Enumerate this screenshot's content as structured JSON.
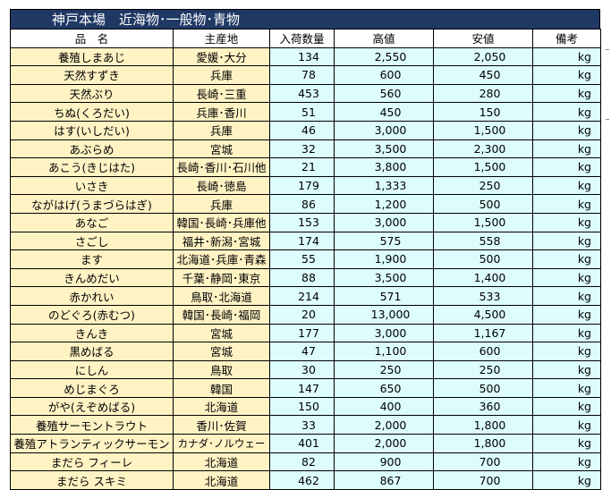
{
  "title": "神戸本場　近海物･一般物･青物",
  "headers": [
    "品　名",
    "主産地",
    "入荷数量",
    "高値",
    "安値",
    "備考"
  ],
  "rows": [
    {
      "name": "養殖しまあじ",
      "origin": "愛媛･大分",
      "qty": "134",
      "high": "2,550",
      "low": "2,050",
      "note": "kg"
    },
    {
      "name": "天然すずき",
      "origin": "兵庫",
      "qty": "78",
      "high": "600",
      "low": "450",
      "note": "kg"
    },
    {
      "name": "天然ぶり",
      "origin": "長崎･三重",
      "qty": "453",
      "high": "560",
      "low": "280",
      "note": "kg"
    },
    {
      "name": "ちぬ(くろだい)",
      "origin": "兵庫･香川",
      "qty": "51",
      "high": "450",
      "low": "150",
      "note": "kg"
    },
    {
      "name": "はす(いしだい)",
      "origin": "兵庫",
      "qty": "46",
      "high": "3,000",
      "low": "1,500",
      "note": "kg"
    },
    {
      "name": "あぶらめ",
      "origin": "宮城",
      "qty": "32",
      "high": "3,500",
      "low": "2,300",
      "note": "kg"
    },
    {
      "name": "あこう(きじはた)",
      "origin": "長崎･香川･石川他",
      "qty": "21",
      "high": "3,800",
      "low": "1,500",
      "note": "kg"
    },
    {
      "name": "いさき",
      "origin": "長崎･徳島",
      "qty": "179",
      "high": "1,333",
      "low": "250",
      "note": "kg"
    },
    {
      "name": "ながはげ(うまづらはぎ)",
      "origin": "兵庫",
      "qty": "86",
      "high": "1,200",
      "low": "500",
      "note": "kg"
    },
    {
      "name": "あなご",
      "origin": "韓国･長崎･兵庫他",
      "qty": "153",
      "high": "3,000",
      "low": "1,500",
      "note": "kg"
    },
    {
      "name": "さごし",
      "origin": "福井･新潟･宮城",
      "qty": "174",
      "high": "575",
      "low": "558",
      "note": "kg"
    },
    {
      "name": "ます",
      "origin": "北海道･兵庫･青森",
      "qty": "55",
      "high": "1,900",
      "low": "500",
      "note": "kg"
    },
    {
      "name": "きんめだい",
      "origin": "千葉･静岡･東京",
      "qty": "88",
      "high": "3,500",
      "low": "1,400",
      "note": "kg"
    },
    {
      "name": "赤かれい",
      "origin": "鳥取･北海道",
      "qty": "214",
      "high": "571",
      "low": "533",
      "note": "kg"
    },
    {
      "name": "のどぐろ(赤むつ)",
      "origin": "韓国･長崎･福岡",
      "qty": "20",
      "high": "13,000",
      "low": "4,500",
      "note": "kg"
    },
    {
      "name": "きんき",
      "origin": "宮城",
      "qty": "177",
      "high": "3,000",
      "low": "1,167",
      "note": "kg"
    },
    {
      "name": "黒めばる",
      "origin": "宮城",
      "qty": "47",
      "high": "1,100",
      "low": "600",
      "note": "kg"
    },
    {
      "name": "にしん",
      "origin": "鳥取",
      "qty": "30",
      "high": "250",
      "low": "250",
      "note": "kg"
    },
    {
      "name": "めじまぐろ",
      "origin": "韓国",
      "qty": "147",
      "high": "650",
      "low": "500",
      "note": "kg"
    },
    {
      "name": "がや(えぞめばる)",
      "origin": "北海道",
      "qty": "150",
      "high": "400",
      "low": "360",
      "note": "kg"
    },
    {
      "name": "養殖サーモントラウト",
      "origin": "香川･佐賀",
      "qty": "33",
      "high": "2,000",
      "low": "1,800",
      "note": "kg"
    },
    {
      "name": "養殖アトランティックサーモン",
      "origin": "カナダ･ノルウェー",
      "qty": "401",
      "high": "2,000",
      "low": "1,800",
      "note": "kg"
    },
    {
      "name": "まだら フィーレ",
      "origin": "北海道",
      "qty": "82",
      "high": "900",
      "low": "700",
      "note": "kg"
    },
    {
      "name": "まだら スキミ",
      "origin": "北海道",
      "qty": "462",
      "high": "867",
      "low": "700",
      "note": "kg"
    }
  ]
}
